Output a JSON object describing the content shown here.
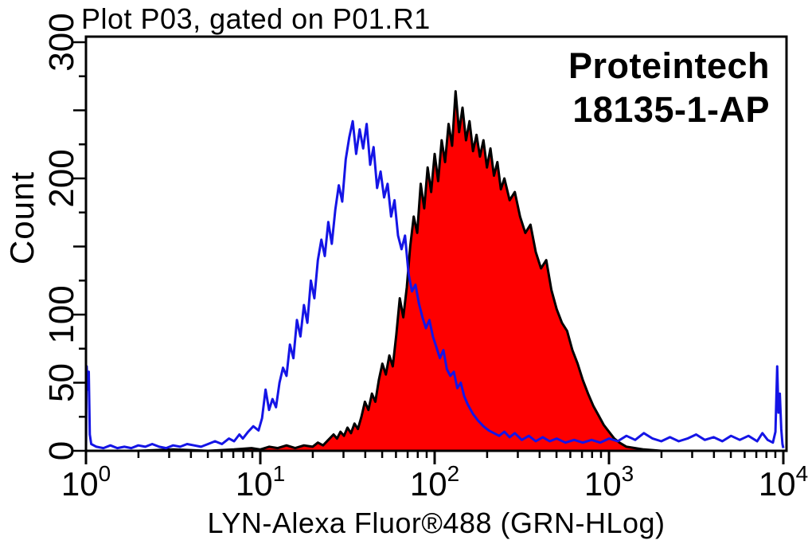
{
  "title": "Plot P03, gated on P01.R1",
  "watermark": {
    "brand": "Proteintech",
    "catalog": "18135-1-AP"
  },
  "colors": {
    "background": "#ffffff",
    "frame": "#000000",
    "text": "#000000",
    "control_line": "#1414e6",
    "antibody_outline": "#000000",
    "antibody_fill": "#fe0000"
  },
  "chart_data": {
    "type": "line",
    "subtype": "flow-cytometry-histogram-overlay",
    "title": "Plot P03, gated on P01.R1",
    "xlabel": "LYN-Alexa Fluor®488 (GRN-HLog)",
    "ylabel": "Count",
    "x_axis": {
      "scale": "log10",
      "range_log": [
        0,
        4
      ],
      "tick_base": "10",
      "tick_exponents": [
        "0",
        "1",
        "2",
        "3",
        "4"
      ],
      "minor_tick_mantissas": [
        2,
        3,
        4,
        5,
        6,
        7,
        8,
        9
      ]
    },
    "y_axis": {
      "scale": "linear",
      "range": [
        0,
        304
      ],
      "labeled_ticks": [
        0,
        50,
        100,
        200,
        300
      ],
      "major_tick_step": 50,
      "minor_tick_step": 25,
      "grid": false
    },
    "legend": "none",
    "series": [
      {
        "name": "red-filled-histogram",
        "role": "antibody-stained-sample",
        "line_color": "#000000",
        "fill_color": "#fe0000",
        "points_logx_count": [
          [
            0,
            0
          ],
          [
            0.3,
            0
          ],
          [
            0.5,
            1
          ],
          [
            0.7,
            0
          ],
          [
            0.85,
            1
          ],
          [
            0.95,
            2
          ],
          [
            1,
            1
          ],
          [
            1.05,
            3
          ],
          [
            1.1,
            2
          ],
          [
            1.15,
            4
          ],
          [
            1.2,
            2
          ],
          [
            1.25,
            4
          ],
          [
            1.3,
            3
          ],
          [
            1.33,
            6
          ],
          [
            1.36,
            4
          ],
          [
            1.39,
            8
          ],
          [
            1.42,
            12
          ],
          [
            1.44,
            9
          ],
          [
            1.46,
            14
          ],
          [
            1.48,
            11
          ],
          [
            1.5,
            17
          ],
          [
            1.52,
            13
          ],
          [
            1.54,
            20
          ],
          [
            1.56,
            16
          ],
          [
            1.58,
            25
          ],
          [
            1.6,
            36
          ],
          [
            1.62,
            30
          ],
          [
            1.64,
            42
          ],
          [
            1.66,
            36
          ],
          [
            1.68,
            52
          ],
          [
            1.7,
            64
          ],
          [
            1.72,
            56
          ],
          [
            1.74,
            70
          ],
          [
            1.76,
            62
          ],
          [
            1.78,
            85
          ],
          [
            1.8,
            112
          ],
          [
            1.82,
            98
          ],
          [
            1.84,
            120
          ],
          [
            1.86,
            150
          ],
          [
            1.88,
            172
          ],
          [
            1.9,
            160
          ],
          [
            1.92,
            196
          ],
          [
            1.94,
            178
          ],
          [
            1.96,
            208
          ],
          [
            1.98,
            190
          ],
          [
            2,
            218
          ],
          [
            2.02,
            198
          ],
          [
            2.04,
            228
          ],
          [
            2.06,
            212
          ],
          [
            2.08,
            240
          ],
          [
            2.1,
            224
          ],
          [
            2.12,
            264
          ],
          [
            2.14,
            234
          ],
          [
            2.16,
            252
          ],
          [
            2.18,
            228
          ],
          [
            2.2,
            242
          ],
          [
            2.22,
            220
          ],
          [
            2.24,
            232
          ],
          [
            2.26,
            216
          ],
          [
            2.28,
            228
          ],
          [
            2.3,
            208
          ],
          [
            2.32,
            222
          ],
          [
            2.34,
            202
          ],
          [
            2.36,
            212
          ],
          [
            2.38,
            192
          ],
          [
            2.4,
            200
          ],
          [
            2.43,
            184
          ],
          [
            2.46,
            190
          ],
          [
            2.49,
            172
          ],
          [
            2.52,
            160
          ],
          [
            2.55,
            166
          ],
          [
            2.58,
            146
          ],
          [
            2.61,
            134
          ],
          [
            2.64,
            140
          ],
          [
            2.67,
            118
          ],
          [
            2.7,
            104
          ],
          [
            2.73,
            94
          ],
          [
            2.76,
            88
          ],
          [
            2.79,
            74
          ],
          [
            2.82,
            64
          ],
          [
            2.85,
            52
          ],
          [
            2.88,
            42
          ],
          [
            2.91,
            33
          ],
          [
            2.94,
            26
          ],
          [
            2.97,
            19
          ],
          [
            3,
            14
          ],
          [
            3.03,
            9
          ],
          [
            3.06,
            6
          ],
          [
            3.1,
            3
          ],
          [
            3.15,
            2
          ],
          [
            3.2,
            1
          ],
          [
            3.3,
            0
          ],
          [
            3.6,
            0
          ],
          [
            4,
            0
          ]
        ]
      },
      {
        "name": "blue-open-histogram",
        "role": "control-sample",
        "line_color": "#1414e6",
        "fill_color": "none",
        "points_logx_count": [
          [
            0,
            0
          ],
          [
            0.004,
            62
          ],
          [
            0.01,
            45
          ],
          [
            0.016,
            58
          ],
          [
            0.022,
            12
          ],
          [
            0.03,
            5
          ],
          [
            0.06,
            3
          ],
          [
            0.1,
            2
          ],
          [
            0.14,
            4
          ],
          [
            0.18,
            2
          ],
          [
            0.22,
            3
          ],
          [
            0.26,
            2
          ],
          [
            0.3,
            4
          ],
          [
            0.34,
            3
          ],
          [
            0.38,
            5
          ],
          [
            0.42,
            3
          ],
          [
            0.46,
            2
          ],
          [
            0.5,
            4
          ],
          [
            0.54,
            3
          ],
          [
            0.58,
            5
          ],
          [
            0.62,
            4
          ],
          [
            0.66,
            3
          ],
          [
            0.7,
            5
          ],
          [
            0.74,
            7
          ],
          [
            0.78,
            5
          ],
          [
            0.82,
            9
          ],
          [
            0.85,
            7
          ],
          [
            0.88,
            12
          ],
          [
            0.9,
            9
          ],
          [
            0.93,
            14
          ],
          [
            0.96,
            18
          ],
          [
            0.99,
            15
          ],
          [
            1.01,
            24
          ],
          [
            1.03,
            45
          ],
          [
            1.05,
            30
          ],
          [
            1.07,
            38
          ],
          [
            1.09,
            32
          ],
          [
            1.11,
            50
          ],
          [
            1.13,
            61
          ],
          [
            1.15,
            55
          ],
          [
            1.17,
            78
          ],
          [
            1.19,
            68
          ],
          [
            1.21,
            96
          ],
          [
            1.23,
            84
          ],
          [
            1.25,
            107
          ],
          [
            1.27,
            94
          ],
          [
            1.29,
            125
          ],
          [
            1.31,
            112
          ],
          [
            1.33,
            140
          ],
          [
            1.35,
            155
          ],
          [
            1.37,
            143
          ],
          [
            1.39,
            168
          ],
          [
            1.41,
            152
          ],
          [
            1.43,
            177
          ],
          [
            1.45,
            195
          ],
          [
            1.47,
            183
          ],
          [
            1.49,
            214
          ],
          [
            1.51,
            230
          ],
          [
            1.53,
            242
          ],
          [
            1.55,
            218
          ],
          [
            1.57,
            236
          ],
          [
            1.59,
            222
          ],
          [
            1.61,
            240
          ],
          [
            1.63,
            210
          ],
          [
            1.65,
            223
          ],
          [
            1.67,
            193
          ],
          [
            1.69,
            205
          ],
          [
            1.71,
            186
          ],
          [
            1.73,
            196
          ],
          [
            1.75,
            172
          ],
          [
            1.77,
            184
          ],
          [
            1.79,
            158
          ],
          [
            1.81,
            148
          ],
          [
            1.83,
            158
          ],
          [
            1.85,
            130
          ],
          [
            1.87,
            117
          ],
          [
            1.89,
            122
          ],
          [
            1.91,
            108
          ],
          [
            1.93,
            98
          ],
          [
            1.95,
            90
          ],
          [
            1.97,
            96
          ],
          [
            1.99,
            84
          ],
          [
            2.01,
            76
          ],
          [
            2.03,
            68
          ],
          [
            2.05,
            74
          ],
          [
            2.07,
            60
          ],
          [
            2.09,
            55
          ],
          [
            2.11,
            58
          ],
          [
            2.13,
            46
          ],
          [
            2.15,
            50
          ],
          [
            2.17,
            40
          ],
          [
            2.19,
            34
          ],
          [
            2.22,
            27
          ],
          [
            2.25,
            22
          ],
          [
            2.28,
            18
          ],
          [
            2.31,
            15
          ],
          [
            2.34,
            13
          ],
          [
            2.37,
            11
          ],
          [
            2.4,
            14
          ],
          [
            2.43,
            10
          ],
          [
            2.46,
            13
          ],
          [
            2.5,
            8
          ],
          [
            2.54,
            11
          ],
          [
            2.58,
            7
          ],
          [
            2.62,
            10
          ],
          [
            2.66,
            7
          ],
          [
            2.7,
            9
          ],
          [
            2.75,
            6
          ],
          [
            2.8,
            8
          ],
          [
            2.85,
            6
          ],
          [
            2.9,
            8
          ],
          [
            2.95,
            6
          ],
          [
            3,
            9
          ],
          [
            3.05,
            7
          ],
          [
            3.1,
            11
          ],
          [
            3.15,
            8
          ],
          [
            3.2,
            13
          ],
          [
            3.25,
            9
          ],
          [
            3.3,
            7
          ],
          [
            3.35,
            10
          ],
          [
            3.4,
            7
          ],
          [
            3.45,
            9
          ],
          [
            3.5,
            12
          ],
          [
            3.55,
            8
          ],
          [
            3.6,
            10
          ],
          [
            3.65,
            7
          ],
          [
            3.7,
            11
          ],
          [
            3.75,
            8
          ],
          [
            3.8,
            11
          ],
          [
            3.85,
            7
          ],
          [
            3.88,
            13
          ],
          [
            3.91,
            8
          ],
          [
            3.94,
            6
          ],
          [
            3.955,
            14
          ],
          [
            3.965,
            62
          ],
          [
            3.972,
            28
          ],
          [
            3.98,
            42
          ],
          [
            3.988,
            16
          ],
          [
            3.995,
            5
          ],
          [
            4,
            2
          ]
        ]
      }
    ]
  }
}
